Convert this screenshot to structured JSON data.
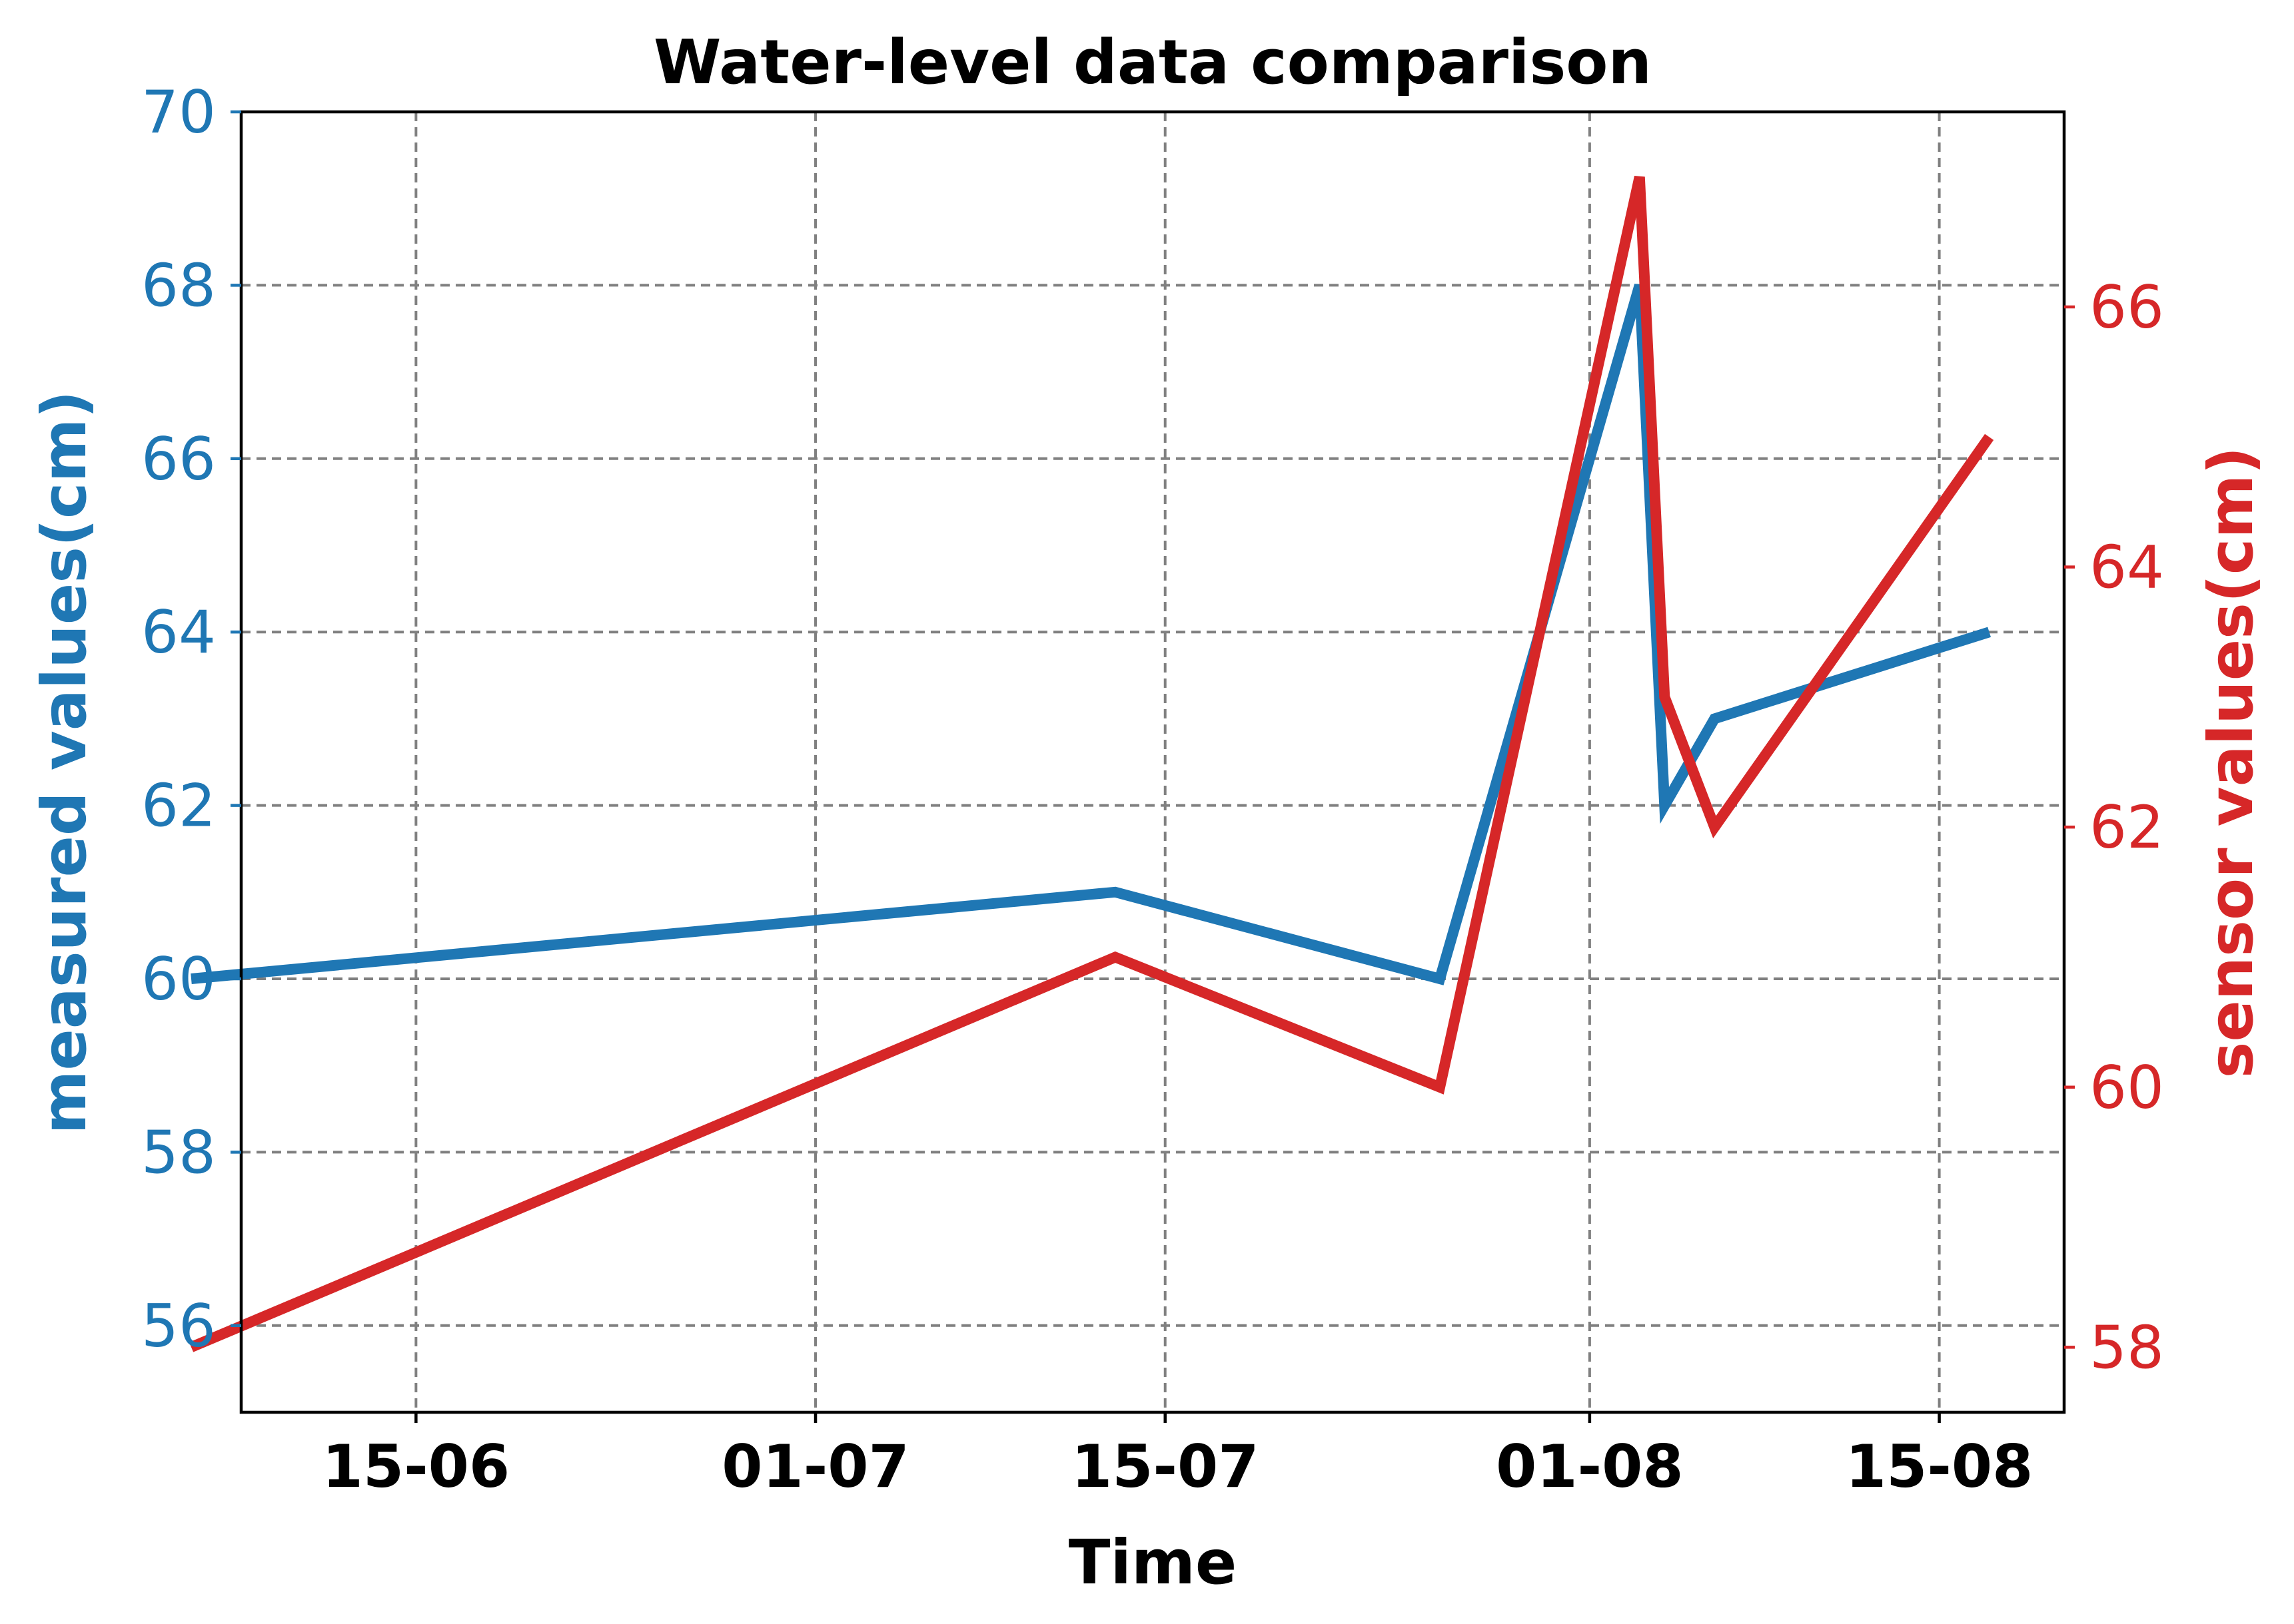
{
  "chart_data": {
    "type": "line",
    "title": "Water-level data comparison",
    "xlabel": "Time",
    "ylabel_left": "measured values(cm)",
    "ylabel_right": "sensor values(cm)",
    "x_axis_type": "date",
    "x_range": [
      "2025-06-08",
      "2025-08-20"
    ],
    "x_ticks": [
      {
        "date": "2025-06-15",
        "label": "15-06"
      },
      {
        "date": "2025-07-01",
        "label": "01-07"
      },
      {
        "date": "2025-07-15",
        "label": "15-07"
      },
      {
        "date": "2025-08-01",
        "label": "01-08"
      },
      {
        "date": "2025-08-15",
        "label": "15-08"
      }
    ],
    "ylim_left": [
      55,
      70
    ],
    "yticks_left": [
      56,
      58,
      60,
      62,
      64,
      66,
      68,
      70
    ],
    "ylim_right": [
      57.5,
      67.5
    ],
    "yticks_right": [
      58,
      60,
      62,
      64,
      66
    ],
    "grid": true,
    "series": [
      {
        "axis": "left",
        "color": "#1f77b4",
        "x": [
          "2025-06-06",
          "2025-07-13",
          "2025-07-26",
          "2025-08-03",
          "2025-08-04",
          "2025-08-06",
          "2025-08-17"
        ],
        "y": [
          60,
          61,
          60,
          68,
          62,
          63,
          64
        ]
      },
      {
        "axis": "right",
        "color": "#d62728",
        "x": [
          "2025-06-06",
          "2025-07-13",
          "2025-07-26",
          "2025-08-03",
          "2025-08-04",
          "2025-08-06",
          "2025-08-17"
        ],
        "y": [
          58,
          61,
          60,
          67,
          63,
          62,
          65
        ]
      }
    ],
    "colors": {
      "left_axis": "#1f77b4",
      "right_axis": "#d62728",
      "grid": "#808080"
    }
  }
}
